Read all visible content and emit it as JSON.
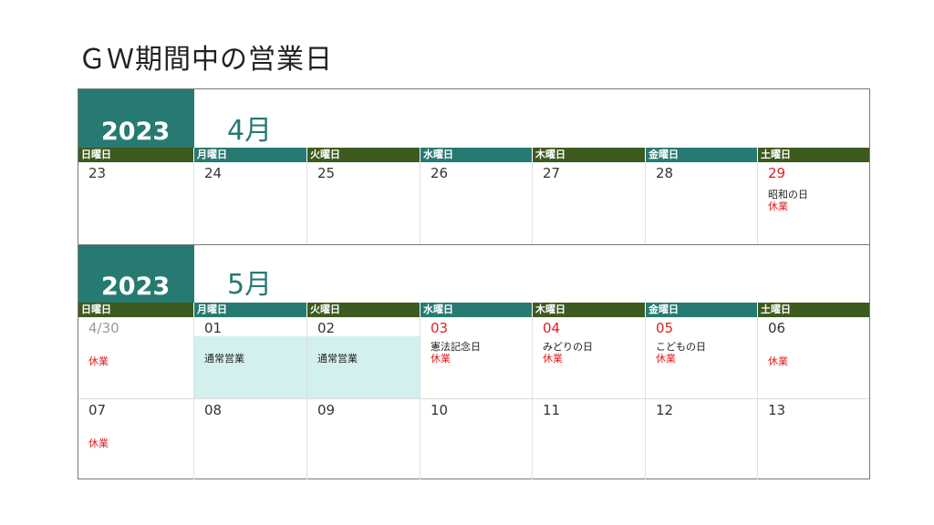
{
  "title": "ＧＷ期間中の営業日",
  "colors": {
    "teal": "#277a72",
    "dark_green": "#3d5a1f",
    "red": "#e02020",
    "business_bg": "#d2f0ee"
  },
  "weekdays": [
    "日曜日",
    "月曜日",
    "火曜日",
    "水曜日",
    "木曜日",
    "金曜日",
    "土曜日"
  ],
  "april": {
    "year": "2023",
    "month": "4月",
    "days": [
      {
        "num": "23"
      },
      {
        "num": "24"
      },
      {
        "num": "25"
      },
      {
        "num": "26"
      },
      {
        "num": "27"
      },
      {
        "num": "28"
      },
      {
        "num": "29",
        "holiday": "昭和の日",
        "status": "休業"
      }
    ]
  },
  "may": {
    "year": "2023",
    "month": "5月",
    "week1": [
      {
        "num": "4/30",
        "status": "休業"
      },
      {
        "num": "01",
        "business": "通常営業"
      },
      {
        "num": "02",
        "business": "通常営業"
      },
      {
        "num": "03",
        "holiday": "憲法記念日",
        "status": "休業"
      },
      {
        "num": "04",
        "holiday": "みどりの日",
        "status": "休業"
      },
      {
        "num": "05",
        "holiday": "こどもの日",
        "status": "休業"
      },
      {
        "num": "06",
        "status": "休業"
      }
    ],
    "week2": [
      {
        "num": "07",
        "status": "休業"
      },
      {
        "num": "08"
      },
      {
        "num": "09"
      },
      {
        "num": "10"
      },
      {
        "num": "11"
      },
      {
        "num": "12"
      },
      {
        "num": "13"
      }
    ]
  }
}
